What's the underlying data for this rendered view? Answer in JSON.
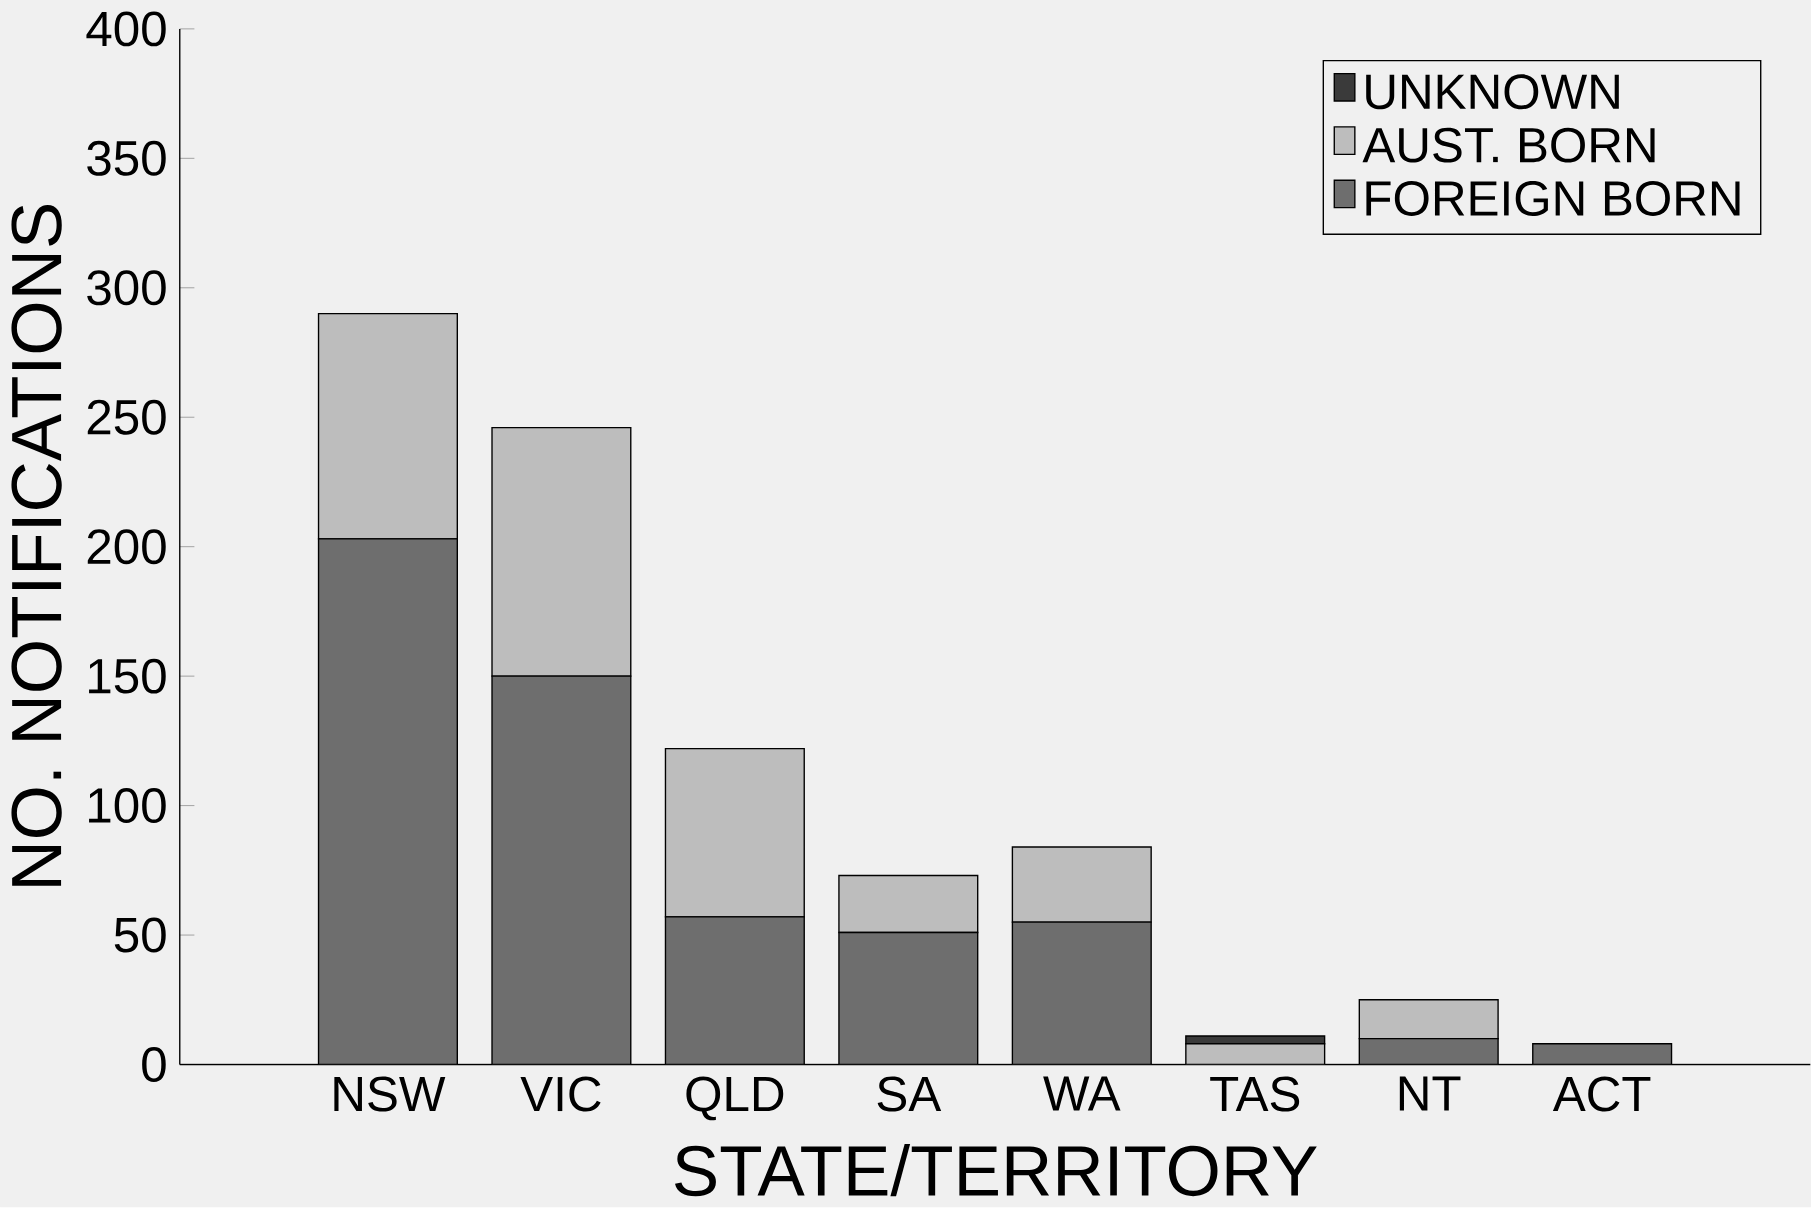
{
  "chart_data": {
    "type": "bar",
    "stacked": true,
    "xlabel": "STATE/TERRITORY",
    "ylabel": "NO. NOTIFICATIONS",
    "categories": [
      "NSW",
      "VIC",
      "QLD",
      "SA",
      "WA",
      "TAS",
      "NT",
      "ACT"
    ],
    "series": [
      {
        "name": "FOREIGN BORN",
        "color": "#6e6e6e",
        "values": [
          203,
          150,
          57,
          51,
          55,
          0,
          10,
          8
        ]
      },
      {
        "name": "AUST. BORN",
        "color": "#bdbdbd",
        "values": [
          87,
          96,
          65,
          22,
          29,
          8,
          15,
          0
        ]
      },
      {
        "name": "UNKNOWN",
        "color": "#3a3a3a",
        "values": [
          0,
          0,
          0,
          0,
          0,
          3,
          0,
          0
        ]
      }
    ],
    "ylim": [
      0,
      400
    ],
    "yticks": [
      0,
      50,
      100,
      150,
      200,
      250,
      300,
      350,
      400
    ],
    "grid": false,
    "legend": "top right"
  }
}
